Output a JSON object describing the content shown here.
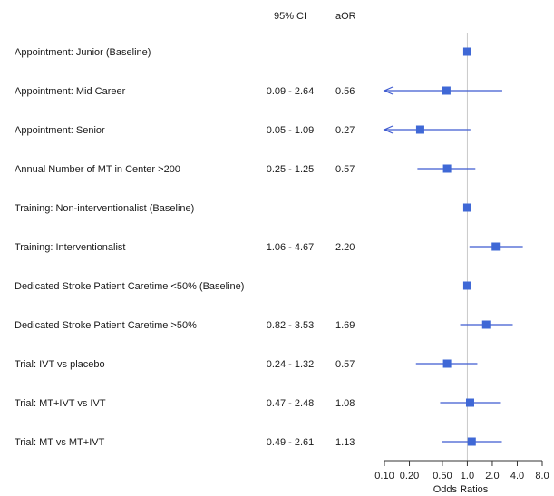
{
  "chart_data": {
    "type": "scatter",
    "subtype": "forest-plot",
    "header": {
      "ci_label": "95% CI",
      "aor_label": "aOR"
    },
    "x_axis": {
      "label": "Odds Ratios",
      "scale": "log",
      "ticks": [
        0.1,
        0.2,
        0.5,
        1.0,
        2.0,
        4.0,
        8.0
      ],
      "tick_labels": [
        "0.10",
        "0.20",
        "0.50",
        "1.0",
        "2.0",
        "4.0",
        "8.0"
      ],
      "xlim": [
        0.1,
        8.0
      ]
    },
    "reference_line": 1.0,
    "rows": [
      {
        "label": "Appointment: Junior (Baseline)",
        "ci": "",
        "aor": "",
        "or": 1.0,
        "low": null,
        "high": null,
        "arrow_left": false
      },
      {
        "label": "Appointment: Mid Career",
        "ci": "0.09 - 2.64",
        "aor": "0.56",
        "or": 0.56,
        "low": 0.09,
        "high": 2.64,
        "arrow_left": true
      },
      {
        "label": "Appointment: Senior",
        "ci": "0.05 - 1.09",
        "aor": "0.27",
        "or": 0.27,
        "low": 0.05,
        "high": 1.09,
        "arrow_left": true
      },
      {
        "label": "Annual Number of MT in Center >200",
        "ci": "0.25 - 1.25",
        "aor": "0.57",
        "or": 0.57,
        "low": 0.25,
        "high": 1.25,
        "arrow_left": false
      },
      {
        "label": "Training: Non-interventionalist (Baseline)",
        "ci": "",
        "aor": "",
        "or": 1.0,
        "low": null,
        "high": null,
        "arrow_left": false
      },
      {
        "label": "Training: Interventionalist",
        "ci": "1.06 - 4.67",
        "aor": "2.20",
        "or": 2.2,
        "low": 1.06,
        "high": 4.67,
        "arrow_left": false
      },
      {
        "label": "Dedicated Stroke Patient Caretime <50% (Baseline)",
        "ci": "",
        "aor": "",
        "or": 1.0,
        "low": null,
        "high": null,
        "arrow_left": false
      },
      {
        "label": "Dedicated Stroke Patient Caretime >50%",
        "ci": "0.82 - 3.53",
        "aor": "1.69",
        "or": 1.69,
        "low": 0.82,
        "high": 3.53,
        "arrow_left": false
      },
      {
        "label": "Trial: IVT vs placebo",
        "ci": "0.24 - 1.32",
        "aor": "0.57",
        "or": 0.57,
        "low": 0.24,
        "high": 1.32,
        "arrow_left": false
      },
      {
        "label": "Trial: MT+IVT vs IVT",
        "ci": "0.47 - 2.48",
        "aor": "1.08",
        "or": 1.08,
        "low": 0.47,
        "high": 2.48,
        "arrow_left": false
      },
      {
        "label": "Trial: MT vs MT+IVT",
        "ci": "0.49 - 2.61",
        "aor": "1.13",
        "or": 1.13,
        "low": 0.49,
        "high": 2.61,
        "arrow_left": false
      }
    ],
    "colors": {
      "marker": "#3f68d6",
      "ci_line": "#3f5bd0",
      "reference": "#c9c9c9",
      "axis": "#333333"
    }
  }
}
